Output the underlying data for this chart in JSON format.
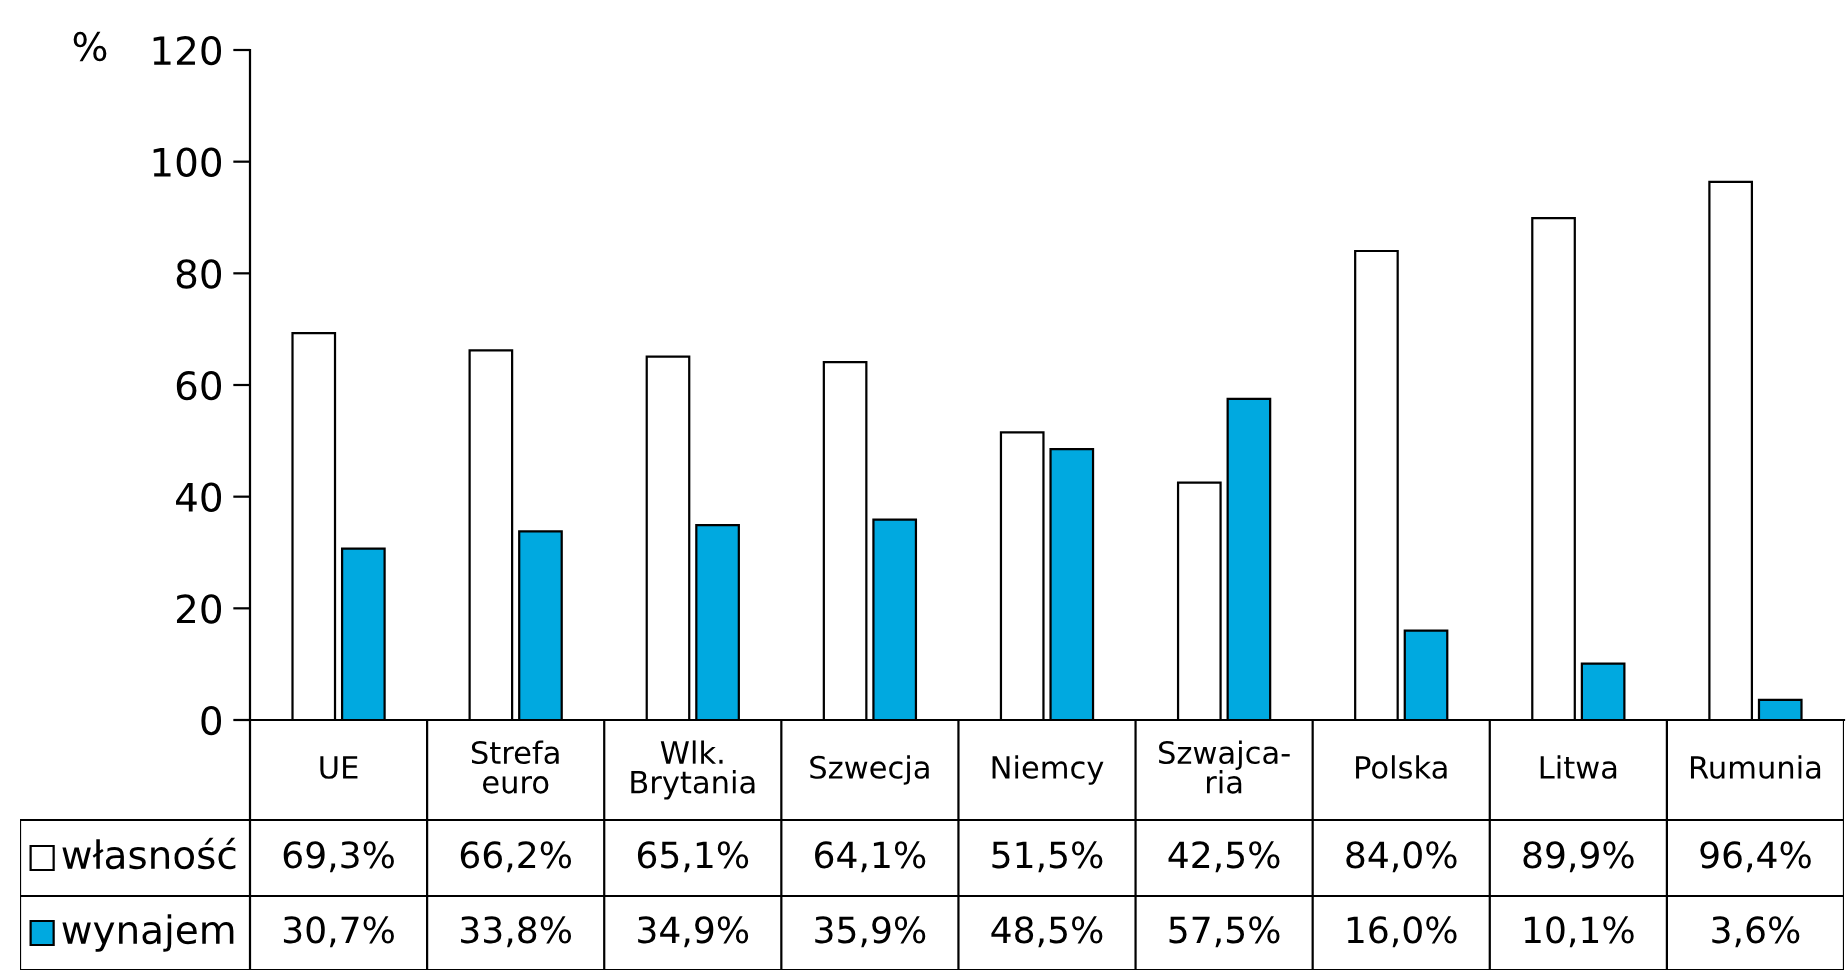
{
  "chart_data": {
    "type": "bar",
    "ylabel": "%",
    "categories": [
      "UE",
      "Strefa\neuro",
      "Wlk.\nBrytania",
      "Szwecja",
      "Niemcy",
      "Szwajca-\nria",
      "Polska",
      "Litwa",
      "Rumunia"
    ],
    "series": [
      {
        "name": "własność",
        "color": "#ffffff",
        "values": [
          69.3,
          66.2,
          65.1,
          64.1,
          51.5,
          42.5,
          84.0,
          89.9,
          96.4
        ],
        "value_labels": [
          "69,3%",
          "66,2%",
          "65,1%",
          "64,1%",
          "51,5%",
          "42,5%",
          "84,0%",
          "89,9%",
          "96,4%"
        ]
      },
      {
        "name": "wynajem",
        "color": "#00a9e0",
        "values": [
          30.7,
          33.8,
          34.9,
          35.9,
          48.5,
          57.5,
          16.0,
          10.1,
          3.6
        ],
        "value_labels": [
          "30,7%",
          "33,8%",
          "34,9%",
          "35,9%",
          "48,5%",
          "57,5%",
          "16,0%",
          "10,1%",
          "3,6%"
        ]
      }
    ],
    "ylim": [
      0,
      120
    ],
    "yticks": [
      0,
      20,
      40,
      60,
      80,
      100,
      120
    ],
    "grid": false,
    "legend": "bottom left"
  }
}
